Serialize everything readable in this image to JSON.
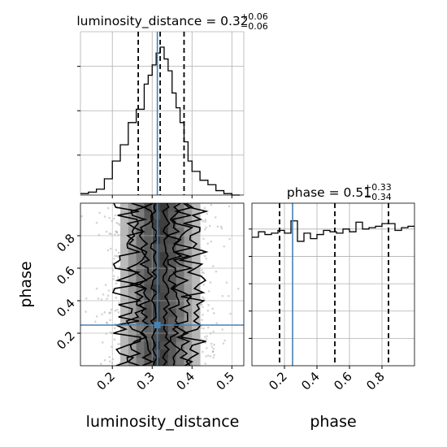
{
  "chart_data": [
    {
      "panel": "luminosity_distance marginal",
      "type": "histogram",
      "title_param": "luminosity_distance",
      "title_value": "0.32",
      "title_plus": "+0.06",
      "title_minus": "−0.06",
      "xlim": [
        0.12,
        0.53
      ],
      "ylim": [
        0,
        1.0
      ],
      "bin_edges": [
        0.12,
        0.14,
        0.16,
        0.18,
        0.2,
        0.22,
        0.24,
        0.26,
        0.28,
        0.29,
        0.3,
        0.31,
        0.32,
        0.33,
        0.34,
        0.35,
        0.36,
        0.37,
        0.38,
        0.39,
        0.4,
        0.42,
        0.44,
        0.46,
        0.48,
        0.5,
        0.52
      ],
      "counts": [
        0.01,
        0.02,
        0.04,
        0.11,
        0.23,
        0.34,
        0.49,
        0.58,
        0.75,
        0.81,
        0.88,
        0.96,
        1.0,
        0.92,
        0.84,
        0.69,
        0.59,
        0.49,
        0.36,
        0.23,
        0.16,
        0.1,
        0.07,
        0.03,
        0.01,
        0.0
      ],
      "quantile_lines": [
        0.265,
        0.32,
        0.38
      ],
      "truth": 0.313,
      "yticks": [
        0.27,
        0.57,
        0.87
      ]
    },
    {
      "panel": "phase marginal",
      "type": "histogram",
      "title_param": "phase",
      "title_value": "0.51",
      "title_plus": "+0.33",
      "title_minus": "−0.34",
      "xlim": [
        0.0,
        1.0
      ],
      "ylim": [
        0,
        1.1
      ],
      "bin_edges": [
        0.0,
        0.04,
        0.08,
        0.12,
        0.16,
        0.2,
        0.24,
        0.28,
        0.32,
        0.36,
        0.4,
        0.44,
        0.48,
        0.52,
        0.56,
        0.6,
        0.64,
        0.68,
        0.72,
        0.76,
        0.8,
        0.84,
        0.88,
        0.92,
        0.96,
        1.0
      ],
      "counts": [
        0.94,
        0.98,
        0.96,
        0.97,
        0.99,
        0.97,
        1.06,
        0.91,
        0.97,
        0.93,
        0.96,
        0.99,
        0.98,
        0.97,
        1.0,
        0.98,
        1.05,
        1.0,
        1.01,
        1.02,
        1.04,
        1.04,
        0.99,
        1.01,
        1.02
      ],
      "quantile_lines": [
        0.17,
        0.51,
        0.84
      ],
      "truth": 0.25,
      "yticks": [
        0.2,
        0.4,
        0.6,
        0.8,
        1.0
      ]
    },
    {
      "panel": "2D density",
      "type": "scatter",
      "xlabel": "luminosity_distance",
      "ylabel": "phase",
      "xlim": [
        0.12,
        0.53
      ],
      "ylim": [
        0.0,
        1.0
      ],
      "xticks": [
        0.2,
        0.3,
        0.4,
        0.5
      ],
      "yticks": [
        0.2,
        0.4,
        0.6,
        0.8
      ],
      "truth": [
        0.313,
        0.25
      ],
      "x_center": 0.32,
      "x_sigma": 0.057,
      "contour_half_widths": [
        0.015,
        0.035,
        0.058,
        0.085
      ]
    }
  ],
  "panel3": {
    "xlabel": "phase",
    "xticks": [
      0.2,
      0.4,
      0.6,
      0.8
    ]
  }
}
